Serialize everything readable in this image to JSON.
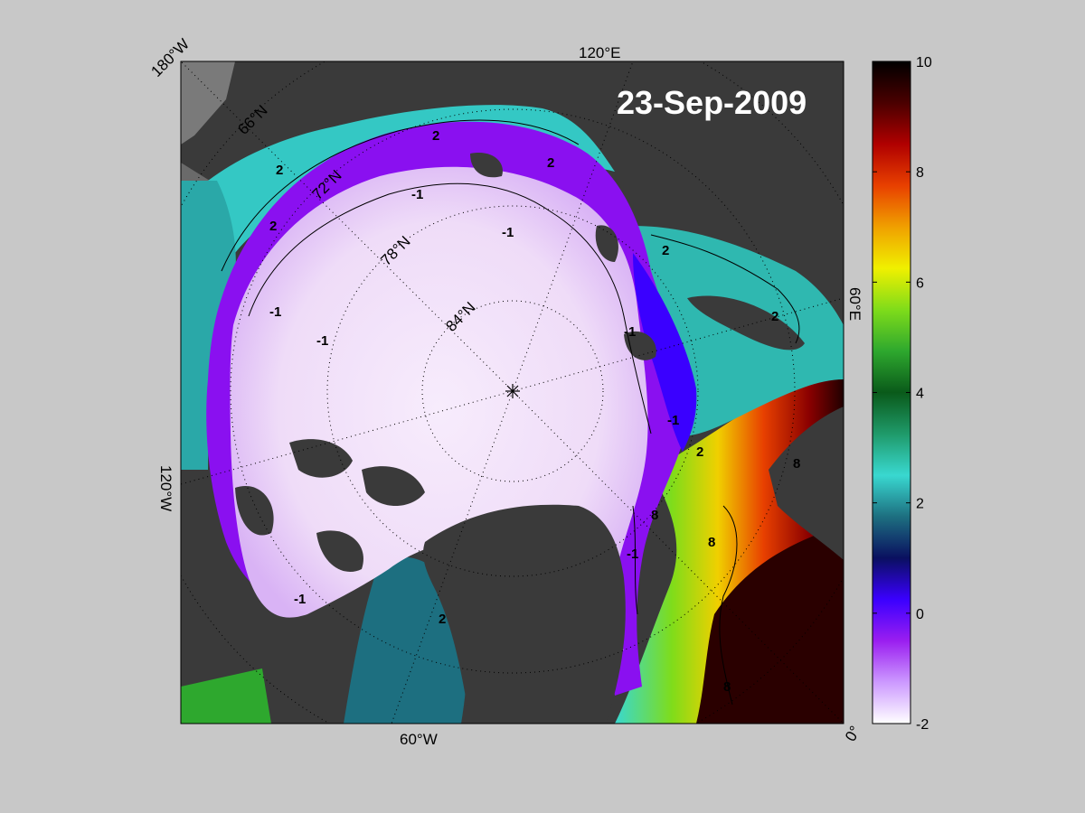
{
  "map": {
    "date": "23-Sep-2009",
    "longitude_labels": [
      {
        "text": "180°W",
        "rotate": -45
      },
      {
        "text": "120°E",
        "rotate": 0
      },
      {
        "text": "60°E",
        "rotate": 90
      },
      {
        "text": "0°",
        "rotate": -60
      },
      {
        "text": "60°W",
        "rotate": 0
      },
      {
        "text": "120°W",
        "rotate": 90
      }
    ],
    "latitude_labels": [
      "66°N",
      "72°N",
      "78°N",
      "84°N"
    ],
    "contour_labels": [
      "-1",
      "-1",
      "-1",
      "-1",
      "-1",
      "-1",
      "-1",
      "-1",
      "2",
      "2",
      "2",
      "2",
      "2",
      "2",
      "2",
      "2",
      "8",
      "8",
      "8",
      "8"
    ],
    "colors": {
      "land": "#3a3a3a",
      "land_edge": "#7a7a7a",
      "ocean_ice": "#f2e2fa"
    }
  },
  "colorbar": {
    "min": -2,
    "max": 10,
    "ticks": [
      "10",
      "8",
      "6",
      "4",
      "2",
      "0",
      "-2"
    ],
    "stops": [
      "#ffffff",
      "#cc99ff",
      "#9a1ef0",
      "#3a00ff",
      "#0a1060",
      "#1d6f80",
      "#39d8d0",
      "#1f9a6a",
      "#0a5a1a",
      "#2ea82e",
      "#7fdc1a",
      "#f0f000",
      "#f0a000",
      "#e84000",
      "#b00000",
      "#4a0000",
      "#000000"
    ]
  }
}
